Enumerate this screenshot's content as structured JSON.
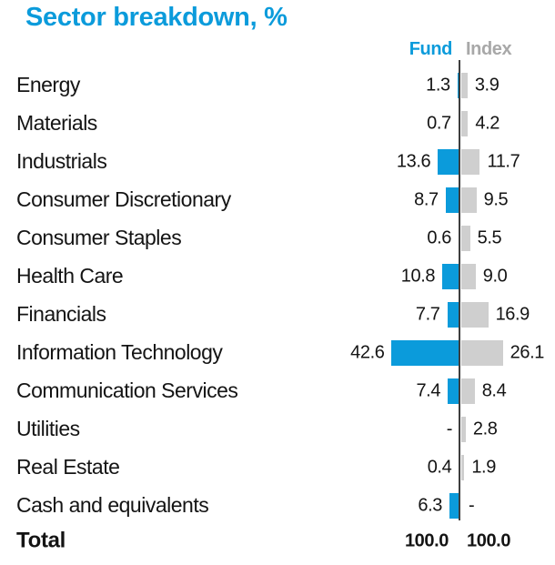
{
  "chart_data": {
    "type": "bar",
    "orientation": "diverging-horizontal",
    "title": "Sector breakdown, %",
    "legend": [
      "Fund",
      "Index"
    ],
    "legend_position": "top-right",
    "grid": false,
    "xlim": [
      0,
      45
    ],
    "colors": {
      "fund_bar": "#0b9bdb",
      "index_bar": "#cfcfcf",
      "fund_header": "#0b9bdb",
      "index_header": "#a8a8a8",
      "axis": "#3f3f3f",
      "text": "#141414",
      "title": "#0b9bdb"
    },
    "categories": [
      "Energy",
      "Materials",
      "Industrials",
      "Consumer Discretionary",
      "Consumer Staples",
      "Health Care",
      "Financials",
      "Information Technology",
      "Communication Services",
      "Utilities",
      "Real Estate",
      "Cash and equivalents"
    ],
    "series": [
      {
        "name": "Fund",
        "values": [
          1.3,
          0.7,
          13.6,
          8.7,
          0.6,
          10.8,
          7.7,
          42.6,
          7.4,
          null,
          0.4,
          6.3
        ]
      },
      {
        "name": "Index",
        "values": [
          3.9,
          4.2,
          11.7,
          9.5,
          5.5,
          9.0,
          16.9,
          26.1,
          8.4,
          2.8,
          1.9,
          null
        ]
      }
    ],
    "value_labels": {
      "fund": [
        "1.3",
        "0.7",
        "13.6",
        "8.7",
        "0.6",
        "10.8",
        "7.7",
        "42.6",
        "7.4",
        "-",
        "0.4",
        "6.3"
      ],
      "index": [
        "3.9",
        "4.2",
        "11.7",
        "9.5",
        "5.5",
        "9.0",
        "16.9",
        "26.1",
        "8.4",
        "2.8",
        "1.9",
        "-"
      ]
    },
    "total": {
      "label": "Total",
      "fund": "100.0",
      "index": "100.0"
    }
  }
}
